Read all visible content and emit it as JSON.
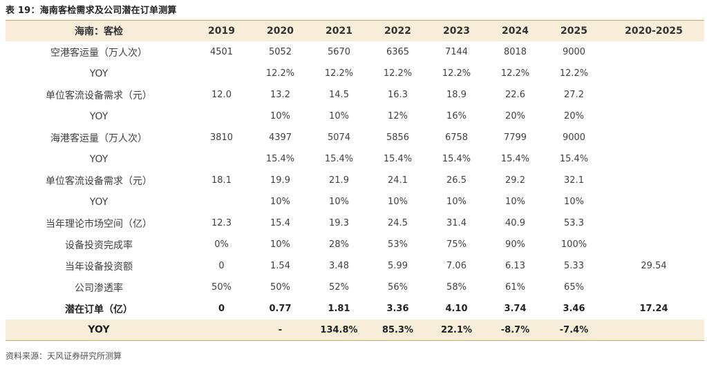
{
  "caption": "表 19：海南客检需求及公司潜在订单测算",
  "source": "资料来源：天风证券研究所测算",
  "columns": [
    "海南：客检",
    "2019",
    "2020",
    "2021",
    "2022",
    "2023",
    "2024",
    "2025",
    "2020-2025"
  ],
  "rows": [
    {
      "label": "空港客运量（万人次）",
      "values": [
        "4501",
        "5052",
        "5670",
        "6365",
        "7144",
        "8018",
        "9000",
        ""
      ],
      "bold": false
    },
    {
      "label": "YOY",
      "values": [
        "",
        "12.2%",
        "12.2%",
        "12.2%",
        "12.2%",
        "12.2%",
        "12.2%",
        ""
      ],
      "bold": false
    },
    {
      "label": "单位客流设备需求（元）",
      "values": [
        "12.0",
        "13.2",
        "14.5",
        "16.3",
        "18.9",
        "22.6",
        "27.2",
        ""
      ],
      "bold": false
    },
    {
      "label": "YOY",
      "values": [
        "",
        "10%",
        "10%",
        "12%",
        "16%",
        "20%",
        "20%",
        ""
      ],
      "bold": false
    },
    {
      "label": "海港客运量（万人次）",
      "values": [
        "3810",
        "4397",
        "5074",
        "5856",
        "6758",
        "7799",
        "9000",
        ""
      ],
      "bold": false
    },
    {
      "label": "YOY",
      "values": [
        "",
        "15.4%",
        "15.4%",
        "15.4%",
        "15.4%",
        "15.4%",
        "15.4%",
        ""
      ],
      "bold": false
    },
    {
      "label": "单位客流设备需求（元）",
      "values": [
        "18.1",
        "19.9",
        "21.9",
        "24.1",
        "26.5",
        "29.2",
        "32.1",
        ""
      ],
      "bold": false
    },
    {
      "label": "YOY",
      "values": [
        "",
        "10%",
        "10%",
        "10%",
        "10%",
        "10%",
        "10%",
        ""
      ],
      "bold": false
    },
    {
      "label": "当年理论市场空间（亿）",
      "values": [
        "12.3",
        "15.4",
        "19.3",
        "24.5",
        "31.4",
        "40.9",
        "53.3",
        ""
      ],
      "bold": false
    },
    {
      "label": "设备投资完成率",
      "values": [
        "0%",
        "10%",
        "28%",
        "53%",
        "75%",
        "90%",
        "100%",
        ""
      ],
      "bold": false
    },
    {
      "label": "当年设备投资额",
      "values": [
        "0",
        "1.54",
        "3.48",
        "5.99",
        "7.06",
        "6.13",
        "5.33",
        "29.54"
      ],
      "bold": false
    },
    {
      "label": "公司渗透率",
      "values": [
        "50%",
        "50%",
        "52%",
        "56%",
        "58%",
        "61%",
        "65%",
        ""
      ],
      "bold": false
    },
    {
      "label": "潜在订单（亿）",
      "values": [
        "0",
        "0.77",
        "1.81",
        "3.36",
        "4.10",
        "3.74",
        "3.46",
        "17.24"
      ],
      "bold": true
    },
    {
      "label": "YOY",
      "values": [
        "",
        "-",
        "134.8%",
        "85.3%",
        "22.1%",
        "-8.7%",
        "-7.4%",
        ""
      ],
      "bold": true
    }
  ]
}
